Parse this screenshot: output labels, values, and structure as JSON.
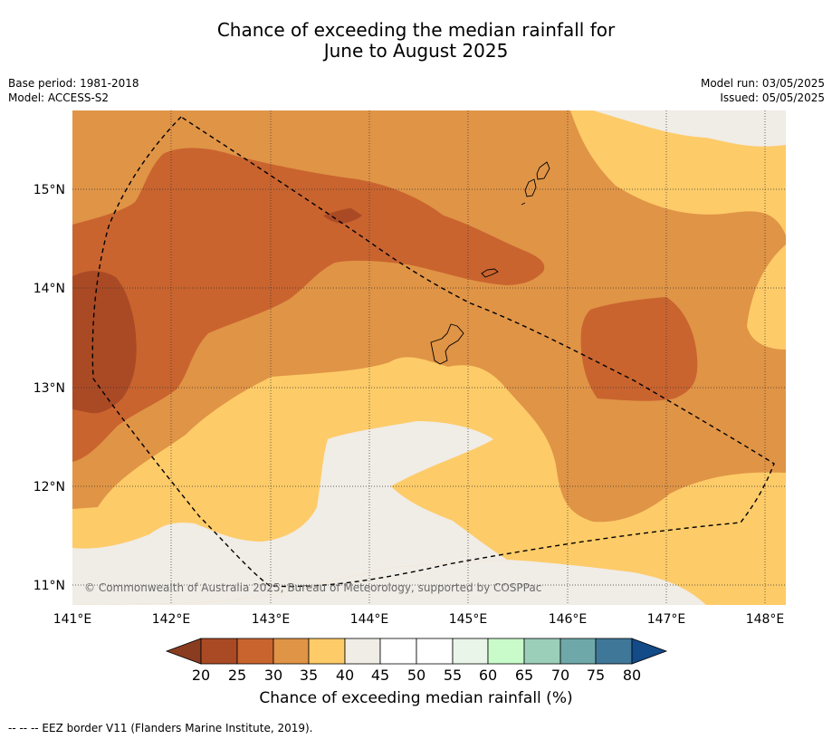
{
  "title_line1": "Chance of exceeding the median rainfall for",
  "title_line2": "June to August 2025",
  "base_period": "Base period: 1981-2018",
  "model": "Model: ACCESS-S2",
  "model_run": "Model run: 03/05/2025",
  "issued": "Issued: 05/05/2025",
  "copyright": "© Commonwealth of Australia 2025, Bureau of Meteorology, supported by COSPPac",
  "x_ticks": [
    "141°E",
    "142°E",
    "143°E",
    "144°E",
    "145°E",
    "146°E",
    "147°E",
    "148°E"
  ],
  "y_ticks": [
    "15°N",
    "14°N",
    "13°N",
    "12°N",
    "11°N"
  ],
  "colorbar": {
    "title": "Chance of exceeding median rainfall (%)",
    "ticks": [
      "20",
      "25",
      "30",
      "35",
      "40",
      "45",
      "50",
      "55",
      "60",
      "65",
      "70",
      "75",
      "80"
    ],
    "colors": {
      "under20": "#8a3c20",
      "p20_25": "#aa4a25",
      "p25_30": "#c9642f",
      "p30_35": "#e09446",
      "p35_40": "#fdcb68",
      "p40_45": "#f0ece6",
      "p45_50": "#ffffff",
      "p50_55": "#ffffff",
      "p55_60": "#e8f5e8",
      "p60_65": "#c9fbca",
      "p65_70": "#9ccfb9",
      "p70_75": "#6fa8a8",
      "p75_80": "#3f7799",
      "over80": "#134a88"
    }
  },
  "legend_note": "--  --  -- EEZ border V11 (Flanders Marine Institute, 2019)."
}
